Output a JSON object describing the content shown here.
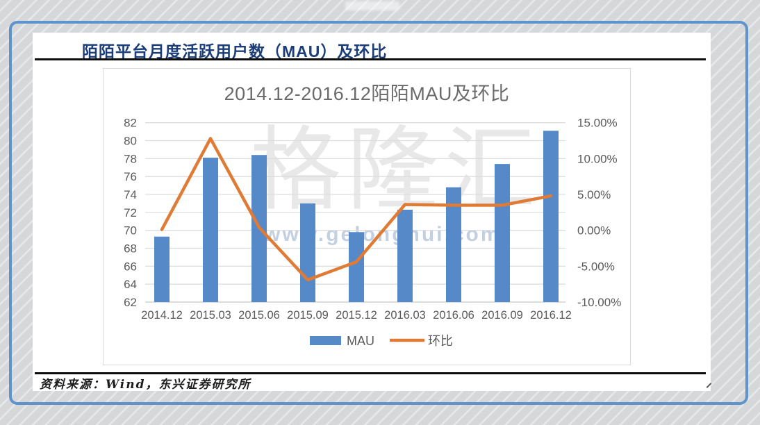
{
  "header": {
    "title": "陌陌平台月度活跃用户数（MAU）及环比"
  },
  "chart_data": {
    "type": "combo-bar-line",
    "title": "2014.12-2016.12陌陌MAU及环比",
    "categories": [
      "2014.12",
      "2015.03",
      "2015.06",
      "2015.09",
      "2015.12",
      "2016.03",
      "2016.06",
      "2016.09",
      "2016.12"
    ],
    "series": [
      {
        "name": "MAU",
        "chart": "bar",
        "axis": "left",
        "values": [
          69.3,
          78.1,
          78.4,
          73.0,
          69.8,
          72.3,
          74.8,
          77.4,
          81.1
        ]
      },
      {
        "name": "环比",
        "chart": "line",
        "axis": "right",
        "unit": "%",
        "values": [
          0.1,
          12.8,
          0.4,
          -6.9,
          -4.4,
          3.6,
          3.5,
          3.5,
          4.8
        ]
      }
    ],
    "left_axis": {
      "min": 62,
      "max": 82,
      "tick_step": 2,
      "tick_labels": [
        "82",
        "80",
        "78",
        "76",
        "74",
        "72",
        "70",
        "68",
        "66",
        "64",
        "62"
      ]
    },
    "right_axis": {
      "min": -10,
      "max": 15,
      "tick_values": [
        15,
        10,
        5,
        0,
        -5,
        -10
      ],
      "tick_labels": [
        "15.00%",
        "10.00%",
        "5.00%",
        "0.00%",
        "-5.00%",
        "-10.00%"
      ]
    },
    "legend": {
      "position": "bottom",
      "items": [
        "MAU",
        "环比"
      ]
    },
    "grid": true
  },
  "watermark": {
    "brand": "格隆汇",
    "site": "www.gelonghui.com"
  },
  "footer": {
    "source": "资料来源：Wind，东兴证券研究所"
  },
  "colors": {
    "bar": "#5689c7",
    "line": "#e07b35",
    "header_title": "#1c3e78",
    "chart_text": "#595959",
    "frame_border": "#5e93cc",
    "gridline": "#dddddd"
  }
}
